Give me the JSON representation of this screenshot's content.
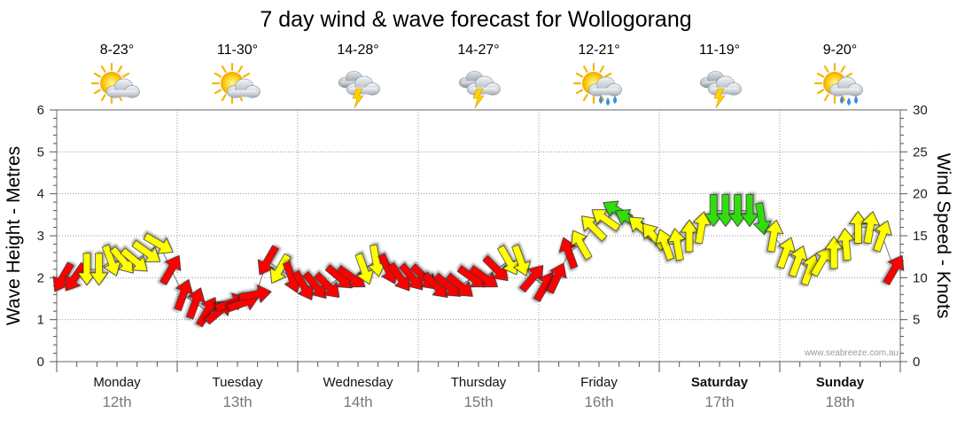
{
  "chart_data": {
    "type": "line",
    "title": "7 day wind & wave forecast for Wollogorang",
    "ylabel_left": "Wave Height - Metres",
    "ylabel_right": "Wind Speed - Knots",
    "ylim_left": [
      0,
      6
    ],
    "ylim_right": [
      0,
      30
    ],
    "yticks_left": [
      "0",
      "1",
      "2",
      "3",
      "4",
      "5",
      "6"
    ],
    "yticks_right": [
      "0",
      "5",
      "10",
      "15",
      "20",
      "25",
      "30"
    ],
    "grid": true,
    "credit": "www.seabreeze.com.au",
    "days": [
      {
        "name": "Monday",
        "date": "12th",
        "temp": "8-23°",
        "icon": "sun-cloud-icon",
        "bold": false
      },
      {
        "name": "Tuesday",
        "date": "13th",
        "temp": "11-30°",
        "icon": "sun-cloud-icon",
        "bold": false
      },
      {
        "name": "Wednesday",
        "date": "14th",
        "temp": "14-28°",
        "icon": "storm-icon",
        "bold": false
      },
      {
        "name": "Thursday",
        "date": "15th",
        "temp": "14-27°",
        "icon": "storm-icon",
        "bold": false
      },
      {
        "name": "Friday",
        "date": "16th",
        "temp": "12-21°",
        "icon": "sun-rain-icon",
        "bold": false
      },
      {
        "name": "Saturday",
        "date": "17th",
        "temp": "11-19°",
        "icon": "storm-icon",
        "bold": true
      },
      {
        "name": "Sunday",
        "date": "18th",
        "temp": "9-20°",
        "icon": "sun-rain-icon",
        "bold": true
      }
    ],
    "legend_colors": {
      "light": "#ffff00",
      "moderate": "#33dd11",
      "strong": "#ff0000"
    },
    "series": [
      {
        "name": "Wind Speed",
        "unit": "knots",
        "x_day_fraction": [
          0.05,
          0.15,
          0.25,
          0.35,
          0.45,
          0.55,
          0.65,
          0.75,
          0.85,
          0.95,
          1.05,
          1.15,
          1.25,
          1.35,
          1.45,
          1.55,
          1.65,
          1.75,
          1.85,
          1.95,
          2.05,
          2.15,
          2.25,
          2.35,
          2.45,
          2.55,
          2.65,
          2.75,
          2.85,
          2.95,
          3.05,
          3.15,
          3.25,
          3.35,
          3.45,
          3.55,
          3.65,
          3.75,
          3.85,
          3.95,
          4.05,
          4.15,
          4.25,
          4.35,
          4.45,
          4.55,
          4.65,
          4.75,
          4.85,
          4.95,
          5.05,
          5.15,
          5.25,
          5.35,
          5.45,
          5.55,
          5.65,
          5.75,
          5.85,
          5.95,
          6.05,
          6.15,
          6.25,
          6.35,
          6.45,
          6.55,
          6.65,
          6.75,
          6.85,
          6.95
        ],
        "values": [
          10,
          10,
          11,
          11,
          12,
          12,
          12,
          13,
          14,
          11,
          8,
          7,
          6,
          6,
          7,
          7,
          8,
          12,
          11,
          10,
          9,
          9,
          9,
          10,
          10,
          11,
          12,
          11,
          10,
          10,
          10,
          9,
          9,
          9,
          10,
          10,
          11,
          12,
          12,
          10,
          9,
          10,
          13,
          14,
          16,
          17,
          18,
          17,
          16,
          15,
          14,
          14,
          15,
          16,
          18,
          18,
          18,
          18,
          17,
          15,
          13,
          12,
          11,
          12,
          13,
          14,
          16,
          16,
          15,
          11
        ],
        "directions_deg": [
          300,
          305,
          270,
          270,
          250,
          230,
          220,
          215,
          210,
          120,
          110,
          110,
          120,
          140,
          160,
          160,
          170,
          300,
          300,
          250,
          240,
          230,
          225,
          220,
          215,
          250,
          260,
          245,
          235,
          230,
          225,
          225,
          220,
          220,
          215,
          215,
          225,
          240,
          250,
          130,
          120,
          115,
          70,
          60,
          45,
          35,
          30,
          30,
          40,
          50,
          70,
          80,
          90,
          100,
          270,
          270,
          270,
          270,
          260,
          100,
          110,
          110,
          110,
          120,
          90,
          85,
          90,
          100,
          110,
          120
        ],
        "colors": [
          "#ff0000",
          "#ff0000",
          "#ffff00",
          "#ffff00",
          "#ffff00",
          "#ffff00",
          "#ffff00",
          "#ffff00",
          "#ffff00",
          "#ff0000",
          "#ff0000",
          "#ff0000",
          "#ff0000",
          "#ff0000",
          "#ff0000",
          "#ff0000",
          "#ff0000",
          "#ff0000",
          "#ffff00",
          "#ff0000",
          "#ff0000",
          "#ff0000",
          "#ff0000",
          "#ff0000",
          "#ff0000",
          "#ffff00",
          "#ffff00",
          "#ff0000",
          "#ff0000",
          "#ff0000",
          "#ff0000",
          "#ff0000",
          "#ff0000",
          "#ff0000",
          "#ff0000",
          "#ff0000",
          "#ff0000",
          "#ffff00",
          "#ffff00",
          "#ff0000",
          "#ff0000",
          "#ff0000",
          "#ff0000",
          "#ffff00",
          "#ffff00",
          "#ffff00",
          "#33dd11",
          "#33dd11",
          "#ffff00",
          "#ffff00",
          "#ffff00",
          "#ffff00",
          "#ffff00",
          "#ffff00",
          "#33dd11",
          "#33dd11",
          "#33dd11",
          "#33dd11",
          "#33dd11",
          "#ffff00",
          "#ffff00",
          "#ffff00",
          "#ffff00",
          "#ffff00",
          "#ffff00",
          "#ffff00",
          "#ffff00",
          "#ffff00",
          "#ffff00",
          "#ff0000"
        ]
      },
      {
        "name": "Wave Height",
        "unit": "metres",
        "x_day_fraction": [
          0.05,
          0.15,
          0.25,
          0.35,
          0.45,
          0.55,
          0.65,
          0.75,
          0.85,
          0.95,
          1.05,
          1.15,
          1.25,
          1.35,
          1.45,
          1.55,
          1.65,
          1.75,
          1.85,
          1.95,
          2.05,
          2.15,
          2.25,
          2.35,
          2.45,
          2.55,
          2.65,
          2.75,
          2.85,
          2.95,
          3.05,
          3.15,
          3.25,
          3.35,
          3.45,
          3.55,
          3.65,
          3.75,
          3.85,
          3.95,
          4.05,
          4.15,
          4.25,
          4.35,
          4.45,
          4.55,
          4.65,
          4.75,
          4.85,
          4.95,
          5.05,
          5.15,
          5.25,
          5.35,
          5.45,
          5.55,
          5.65,
          5.75,
          5.85,
          5.95,
          6.05,
          6.15,
          6.25,
          6.35,
          6.45,
          6.55,
          6.65,
          6.75,
          6.85,
          6.95
        ],
        "values": [
          2.0,
          2.0,
          2.2,
          2.2,
          2.4,
          2.4,
          2.4,
          2.6,
          2.8,
          2.2,
          1.6,
          1.4,
          1.2,
          1.2,
          1.4,
          1.4,
          1.6,
          2.4,
          2.2,
          2.0,
          1.8,
          1.8,
          1.8,
          2.0,
          2.0,
          2.2,
          2.4,
          2.2,
          2.0,
          2.0,
          2.0,
          1.8,
          1.8,
          1.8,
          2.0,
          2.0,
          2.2,
          2.4,
          2.4,
          2.0,
          1.8,
          2.0,
          2.6,
          2.8,
          3.2,
          3.4,
          3.6,
          3.4,
          3.2,
          3.0,
          2.8,
          2.8,
          3.0,
          3.2,
          3.6,
          3.6,
          3.6,
          3.6,
          3.4,
          3.0,
          2.6,
          2.4,
          2.2,
          2.4,
          2.6,
          2.8,
          3.2,
          3.2,
          3.0,
          2.2
        ]
      }
    ]
  }
}
